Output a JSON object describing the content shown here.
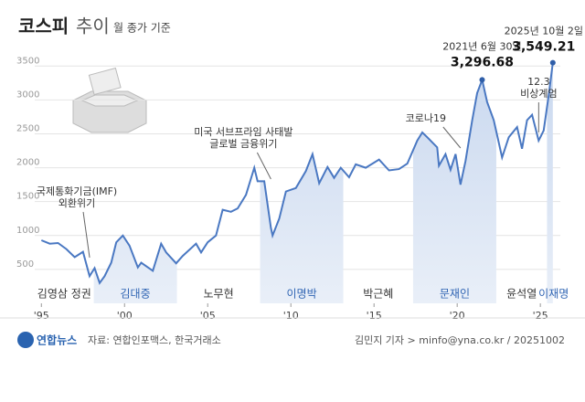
{
  "chart_data": {
    "type": "line",
    "title": "코스피",
    "title_suffix": "추이",
    "subtitle": "월 종가 기준",
    "x": [
      1995.0,
      1995.5,
      1996.0,
      1996.5,
      1997.0,
      1997.5,
      1997.9,
      1998.2,
      1998.5,
      1998.8,
      1999.2,
      1999.5,
      1999.9,
      2000.3,
      2000.8,
      2001.0,
      2001.7,
      2002.2,
      2002.5,
      2003.1,
      2003.5,
      2004.3,
      2004.6,
      2005.0,
      2005.5,
      2005.9,
      2006.4,
      2006.8,
      2007.3,
      2007.8,
      2008.0,
      2008.4,
      2008.8,
      2008.9,
      2009.3,
      2009.7,
      2010.3,
      2010.9,
      2011.3,
      2011.7,
      2012.2,
      2012.6,
      2013.0,
      2013.5,
      2013.9,
      2014.5,
      2015.3,
      2015.9,
      2016.5,
      2017.0,
      2017.6,
      2017.9,
      2018.2,
      2018.8,
      2018.9,
      2019.3,
      2019.6,
      2019.9,
      2020.2,
      2020.5,
      2020.9,
      2021.2,
      2021.5,
      2021.8,
      2022.2,
      2022.7,
      2023.1,
      2023.6,
      2023.9,
      2024.2,
      2024.5,
      2024.9,
      2025.2,
      2025.5,
      2025.75
    ],
    "series": [
      {
        "name": "코스피",
        "color": "#4a78c2",
        "values": [
          930,
          880,
          890,
          800,
          680,
          760,
          400,
          520,
          300,
          400,
          600,
          900,
          1000,
          850,
          530,
          600,
          480,
          880,
          750,
          590,
          700,
          880,
          750,
          900,
          1000,
          1380,
          1350,
          1400,
          1600,
          2000,
          1800,
          1800,
          1110,
          1000,
          1250,
          1650,
          1700,
          1950,
          2200,
          1770,
          2010,
          1850,
          2000,
          1860,
          2050,
          2000,
          2120,
          1960,
          1980,
          2060,
          2400,
          2520,
          2450,
          2300,
          2030,
          2200,
          1970,
          2200,
          1750,
          2100,
          2700,
          3100,
          3296.68,
          2970,
          2700,
          2150,
          2450,
          2600,
          2280,
          2700,
          2780,
          2400,
          2550,
          3070,
          3549.21
        ]
      }
    ],
    "xlim": [
      1994.6,
      2026.2
    ],
    "ylim": [
      0,
      3800
    ],
    "yticks": [
      500,
      1000,
      1500,
      2000,
      2500,
      3000,
      3500
    ],
    "xticks": [
      {
        "value": 1995,
        "label": "'95"
      },
      {
        "value": 2000,
        "label": "'00"
      },
      {
        "value": 2005,
        "label": "'05"
      },
      {
        "value": 2010,
        "label": "'10"
      },
      {
        "value": 2015,
        "label": "'15"
      },
      {
        "value": 2020,
        "label": "'20"
      },
      {
        "value": 2025,
        "label": "'25"
      }
    ],
    "grid": true,
    "eras": [
      {
        "name": "김영삼 정권",
        "start": 1993.15,
        "end": 1998.15,
        "shaded": false
      },
      {
        "name": "김대중",
        "start": 1998.15,
        "end": 2003.15,
        "shaded": true
      },
      {
        "name": "노무현",
        "start": 2003.15,
        "end": 2008.15,
        "shaded": false
      },
      {
        "name": "이명박",
        "start": 2008.15,
        "end": 2013.15,
        "shaded": true
      },
      {
        "name": "박근혜",
        "start": 2013.15,
        "end": 2017.35,
        "shaded": false
      },
      {
        "name": "문재인",
        "start": 2017.35,
        "end": 2022.35,
        "shaded": true
      },
      {
        "name": "윤석열",
        "start": 2022.35,
        "end": 2025.4,
        "shaded": false
      },
      {
        "name": "이재명",
        "start": 2025.4,
        "shaded": true
      }
    ],
    "annotations": [
      {
        "lines": [
          "국제통화기금(IMF)",
          "외환위기"
        ],
        "x": 1997.9
      },
      {
        "lines": [
          "미국 서브프라임 사태발",
          "글로벌 금융위기"
        ],
        "x": 2008.8
      },
      {
        "lines": [
          "코로나19"
        ],
        "x": 2020.2
      },
      {
        "lines": [
          "12.3",
          "비상계엄"
        ],
        "x": 2024.9
      }
    ],
    "highlights": [
      {
        "date": "2021년 6월 30일",
        "x": 2021.5,
        "value": 3296.68,
        "value_label": "3,296.68"
      },
      {
        "date": "2025년 10월 2일",
        "x": 2025.75,
        "value": 3549.21,
        "value_label": "3,549.21"
      }
    ]
  },
  "footer": {
    "logo": "연합뉴스",
    "source": "자료: 연합인포맥스, 한국거래소",
    "credit": "김민지 기자 > minfo@yna.co.kr / 20251002"
  }
}
